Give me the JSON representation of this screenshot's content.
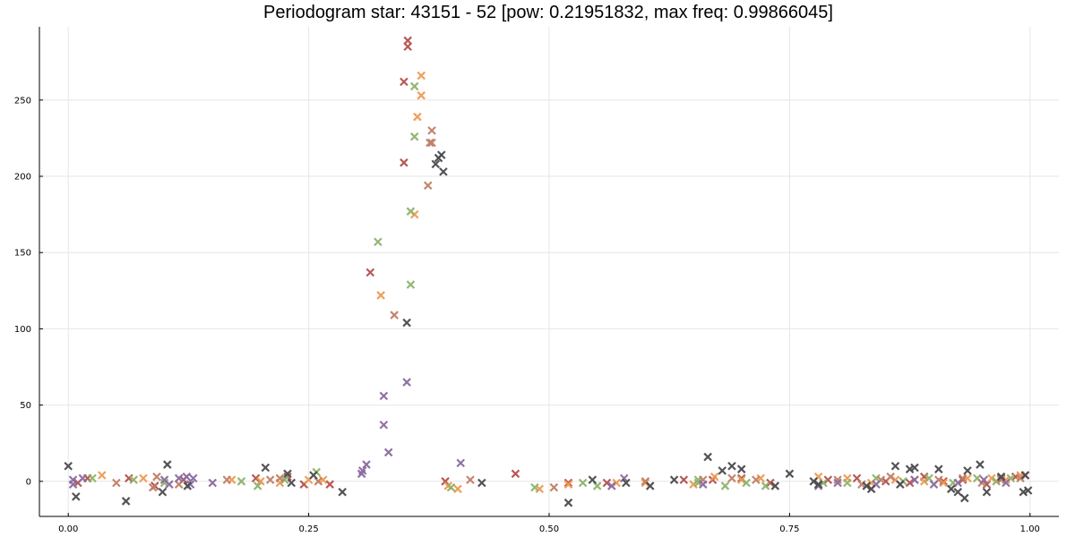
{
  "title": "Periodogram star: 43151 - 52 [pow: 0.21951832, max freq: 0.99866045]",
  "chart_data": {
    "type": "scatter",
    "title": "Periodogram star: 43151 - 52 [pow: 0.21951832, max freq: 0.99866045]",
    "xlabel": "",
    "ylabel": "",
    "xlim": [
      -0.03,
      1.03
    ],
    "ylim": [
      -23,
      298
    ],
    "grid": true,
    "legend": "none",
    "marker": "x",
    "x_ticks": [
      {
        "value": 0.0,
        "label": "0.00"
      },
      {
        "value": 0.25,
        "label": "0.25"
      },
      {
        "value": 0.5,
        "label": "0.50"
      },
      {
        "value": 0.75,
        "label": "0.75"
      },
      {
        "value": 1.0,
        "label": "1.00"
      }
    ],
    "y_ticks": [
      {
        "value": 0,
        "label": "0"
      },
      {
        "value": 50,
        "label": "50"
      },
      {
        "value": 100,
        "label": "100"
      },
      {
        "value": 150,
        "label": "150"
      },
      {
        "value": 200,
        "label": "200"
      },
      {
        "value": 250,
        "label": "250"
      }
    ],
    "series": [
      {
        "color": "#b4504c",
        "points": [
          [
            0.01,
            -1
          ],
          [
            0.02,
            2
          ],
          [
            0.063,
            2
          ],
          [
            0.09,
            -3
          ],
          [
            0.12,
            1
          ],
          [
            0.195,
            2
          ],
          [
            0.228,
            3
          ],
          [
            0.245,
            -2
          ],
          [
            0.272,
            -2
          ],
          [
            0.314,
            137
          ],
          [
            0.349,
            209
          ],
          [
            0.349,
            262
          ],
          [
            0.353,
            285
          ],
          [
            0.353,
            289
          ],
          [
            0.392,
            0
          ],
          [
            0.465,
            5
          ],
          [
            0.52,
            -1
          ],
          [
            0.56,
            -1
          ],
          [
            0.64,
            1
          ],
          [
            0.67,
            1
          ],
          [
            0.7,
            2
          ],
          [
            0.73,
            -1
          ],
          [
            0.79,
            1
          ],
          [
            0.82,
            2
          ],
          [
            0.85,
            0
          ],
          [
            0.875,
            -1
          ],
          [
            0.89,
            3
          ],
          [
            0.91,
            0
          ],
          [
            0.93,
            1
          ],
          [
            0.955,
            -2
          ],
          [
            0.97,
            2
          ],
          [
            0.985,
            3
          ],
          [
            0.995,
            4
          ]
        ]
      },
      {
        "color": "#ef9950",
        "points": [
          [
            0.035,
            4
          ],
          [
            0.078,
            2
          ],
          [
            0.17,
            1
          ],
          [
            0.2,
            0
          ],
          [
            0.22,
            -1
          ],
          [
            0.25,
            1
          ],
          [
            0.265,
            1
          ],
          [
            0.325,
            122
          ],
          [
            0.36,
            175
          ],
          [
            0.363,
            239
          ],
          [
            0.367,
            253
          ],
          [
            0.367,
            266
          ],
          [
            0.395,
            -3
          ],
          [
            0.405,
            -5
          ],
          [
            0.49,
            -5
          ],
          [
            0.52,
            -2
          ],
          [
            0.57,
            -1
          ],
          [
            0.6,
            -1
          ],
          [
            0.65,
            -2
          ],
          [
            0.672,
            3
          ],
          [
            0.7,
            1
          ],
          [
            0.72,
            2
          ],
          [
            0.78,
            3
          ],
          [
            0.81,
            2
          ],
          [
            0.835,
            -1
          ],
          [
            0.86,
            1
          ],
          [
            0.89,
            0
          ],
          [
            0.91,
            -1
          ],
          [
            0.935,
            2
          ],
          [
            0.96,
            2
          ],
          [
            0.975,
            1
          ],
          [
            0.99,
            4
          ]
        ]
      },
      {
        "color": "#8cb369",
        "points": [
          [
            0.025,
            2
          ],
          [
            0.068,
            1
          ],
          [
            0.1,
            -1
          ],
          [
            0.18,
            0
          ],
          [
            0.197,
            -3
          ],
          [
            0.225,
            1
          ],
          [
            0.258,
            6
          ],
          [
            0.322,
            157
          ],
          [
            0.356,
            129
          ],
          [
            0.356,
            177
          ],
          [
            0.36,
            226
          ],
          [
            0.36,
            259
          ],
          [
            0.398,
            -4
          ],
          [
            0.485,
            -4
          ],
          [
            0.535,
            -1
          ],
          [
            0.55,
            -3
          ],
          [
            0.655,
            -1
          ],
          [
            0.655,
            1
          ],
          [
            0.683,
            -3
          ],
          [
            0.705,
            -1
          ],
          [
            0.725,
            -3
          ],
          [
            0.785,
            -1
          ],
          [
            0.81,
            -1
          ],
          [
            0.84,
            2
          ],
          [
            0.868,
            0
          ],
          [
            0.895,
            2
          ],
          [
            0.92,
            -1
          ],
          [
            0.945,
            2
          ],
          [
            0.965,
            0
          ],
          [
            0.98,
            2
          ]
        ]
      },
      {
        "color": "#c07e66",
        "points": [
          [
            0.05,
            -1
          ],
          [
            0.088,
            -4
          ],
          [
            0.092,
            3
          ],
          [
            0.115,
            -2
          ],
          [
            0.165,
            1
          ],
          [
            0.21,
            1
          ],
          [
            0.22,
            2
          ],
          [
            0.26,
            0
          ],
          [
            0.339,
            109
          ],
          [
            0.374,
            194
          ],
          [
            0.376,
            222
          ],
          [
            0.378,
            222
          ],
          [
            0.378,
            230
          ],
          [
            0.418,
            1
          ],
          [
            0.505,
            -4
          ],
          [
            0.6,
            0
          ],
          [
            0.66,
            1
          ],
          [
            0.69,
            2
          ],
          [
            0.715,
            1
          ],
          [
            0.8,
            1
          ],
          [
            0.825,
            -2
          ],
          [
            0.845,
            1
          ],
          [
            0.855,
            3
          ],
          [
            0.88,
            1
          ],
          [
            0.905,
            1
          ],
          [
            0.93,
            2
          ],
          [
            0.95,
            -1
          ],
          [
            0.97,
            1
          ],
          [
            0.99,
            2
          ]
        ]
      },
      {
        "color": "#8a6aa0",
        "points": [
          [
            0.005,
            1
          ],
          [
            0.005,
            -2
          ],
          [
            0.015,
            2
          ],
          [
            0.1,
            1
          ],
          [
            0.105,
            -2
          ],
          [
            0.115,
            2
          ],
          [
            0.123,
            3
          ],
          [
            0.127,
            -2
          ],
          [
            0.13,
            2
          ],
          [
            0.15,
            -1
          ],
          [
            0.305,
            5
          ],
          [
            0.306,
            7
          ],
          [
            0.31,
            11
          ],
          [
            0.328,
            37
          ],
          [
            0.328,
            56
          ],
          [
            0.333,
            19
          ],
          [
            0.352,
            65
          ],
          [
            0.408,
            12
          ],
          [
            0.565,
            -3
          ],
          [
            0.578,
            2
          ],
          [
            0.66,
            -2
          ],
          [
            0.78,
            -3
          ],
          [
            0.8,
            -1
          ],
          [
            0.84,
            -2
          ],
          [
            0.88,
            1
          ],
          [
            0.9,
            -2
          ],
          [
            0.925,
            -1
          ],
          [
            0.952,
            1
          ],
          [
            0.975,
            -1
          ]
        ]
      },
      {
        "color": "#4a4a4e",
        "points": [
          [
            0.0,
            10
          ],
          [
            0.008,
            -10
          ],
          [
            0.06,
            -13
          ],
          [
            0.098,
            -7
          ],
          [
            0.103,
            11
          ],
          [
            0.124,
            -3
          ],
          [
            0.205,
            9
          ],
          [
            0.228,
            5
          ],
          [
            0.232,
            -1
          ],
          [
            0.255,
            4
          ],
          [
            0.285,
            -7
          ],
          [
            0.352,
            104
          ],
          [
            0.382,
            208
          ],
          [
            0.385,
            212
          ],
          [
            0.388,
            214
          ],
          [
            0.39,
            203
          ],
          [
            0.43,
            -1
          ],
          [
            0.52,
            -14
          ],
          [
            0.545,
            1
          ],
          [
            0.58,
            -1
          ],
          [
            0.605,
            -3
          ],
          [
            0.63,
            1
          ],
          [
            0.665,
            16
          ],
          [
            0.68,
            7
          ],
          [
            0.69,
            10
          ],
          [
            0.7,
            8
          ],
          [
            0.735,
            -3
          ],
          [
            0.75,
            5
          ],
          [
            0.775,
            0
          ],
          [
            0.78,
            -2
          ],
          [
            0.83,
            -3
          ],
          [
            0.835,
            -5
          ],
          [
            0.86,
            10
          ],
          [
            0.865,
            -2
          ],
          [
            0.875,
            8
          ],
          [
            0.88,
            9
          ],
          [
            0.905,
            8
          ],
          [
            0.918,
            -5
          ],
          [
            0.925,
            -7
          ],
          [
            0.932,
            -11
          ],
          [
            0.935,
            7
          ],
          [
            0.948,
            11
          ],
          [
            0.955,
            -7
          ],
          [
            0.97,
            3
          ],
          [
            0.993,
            -7
          ],
          [
            0.995,
            4
          ],
          [
            0.998,
            -6
          ]
        ]
      }
    ]
  }
}
